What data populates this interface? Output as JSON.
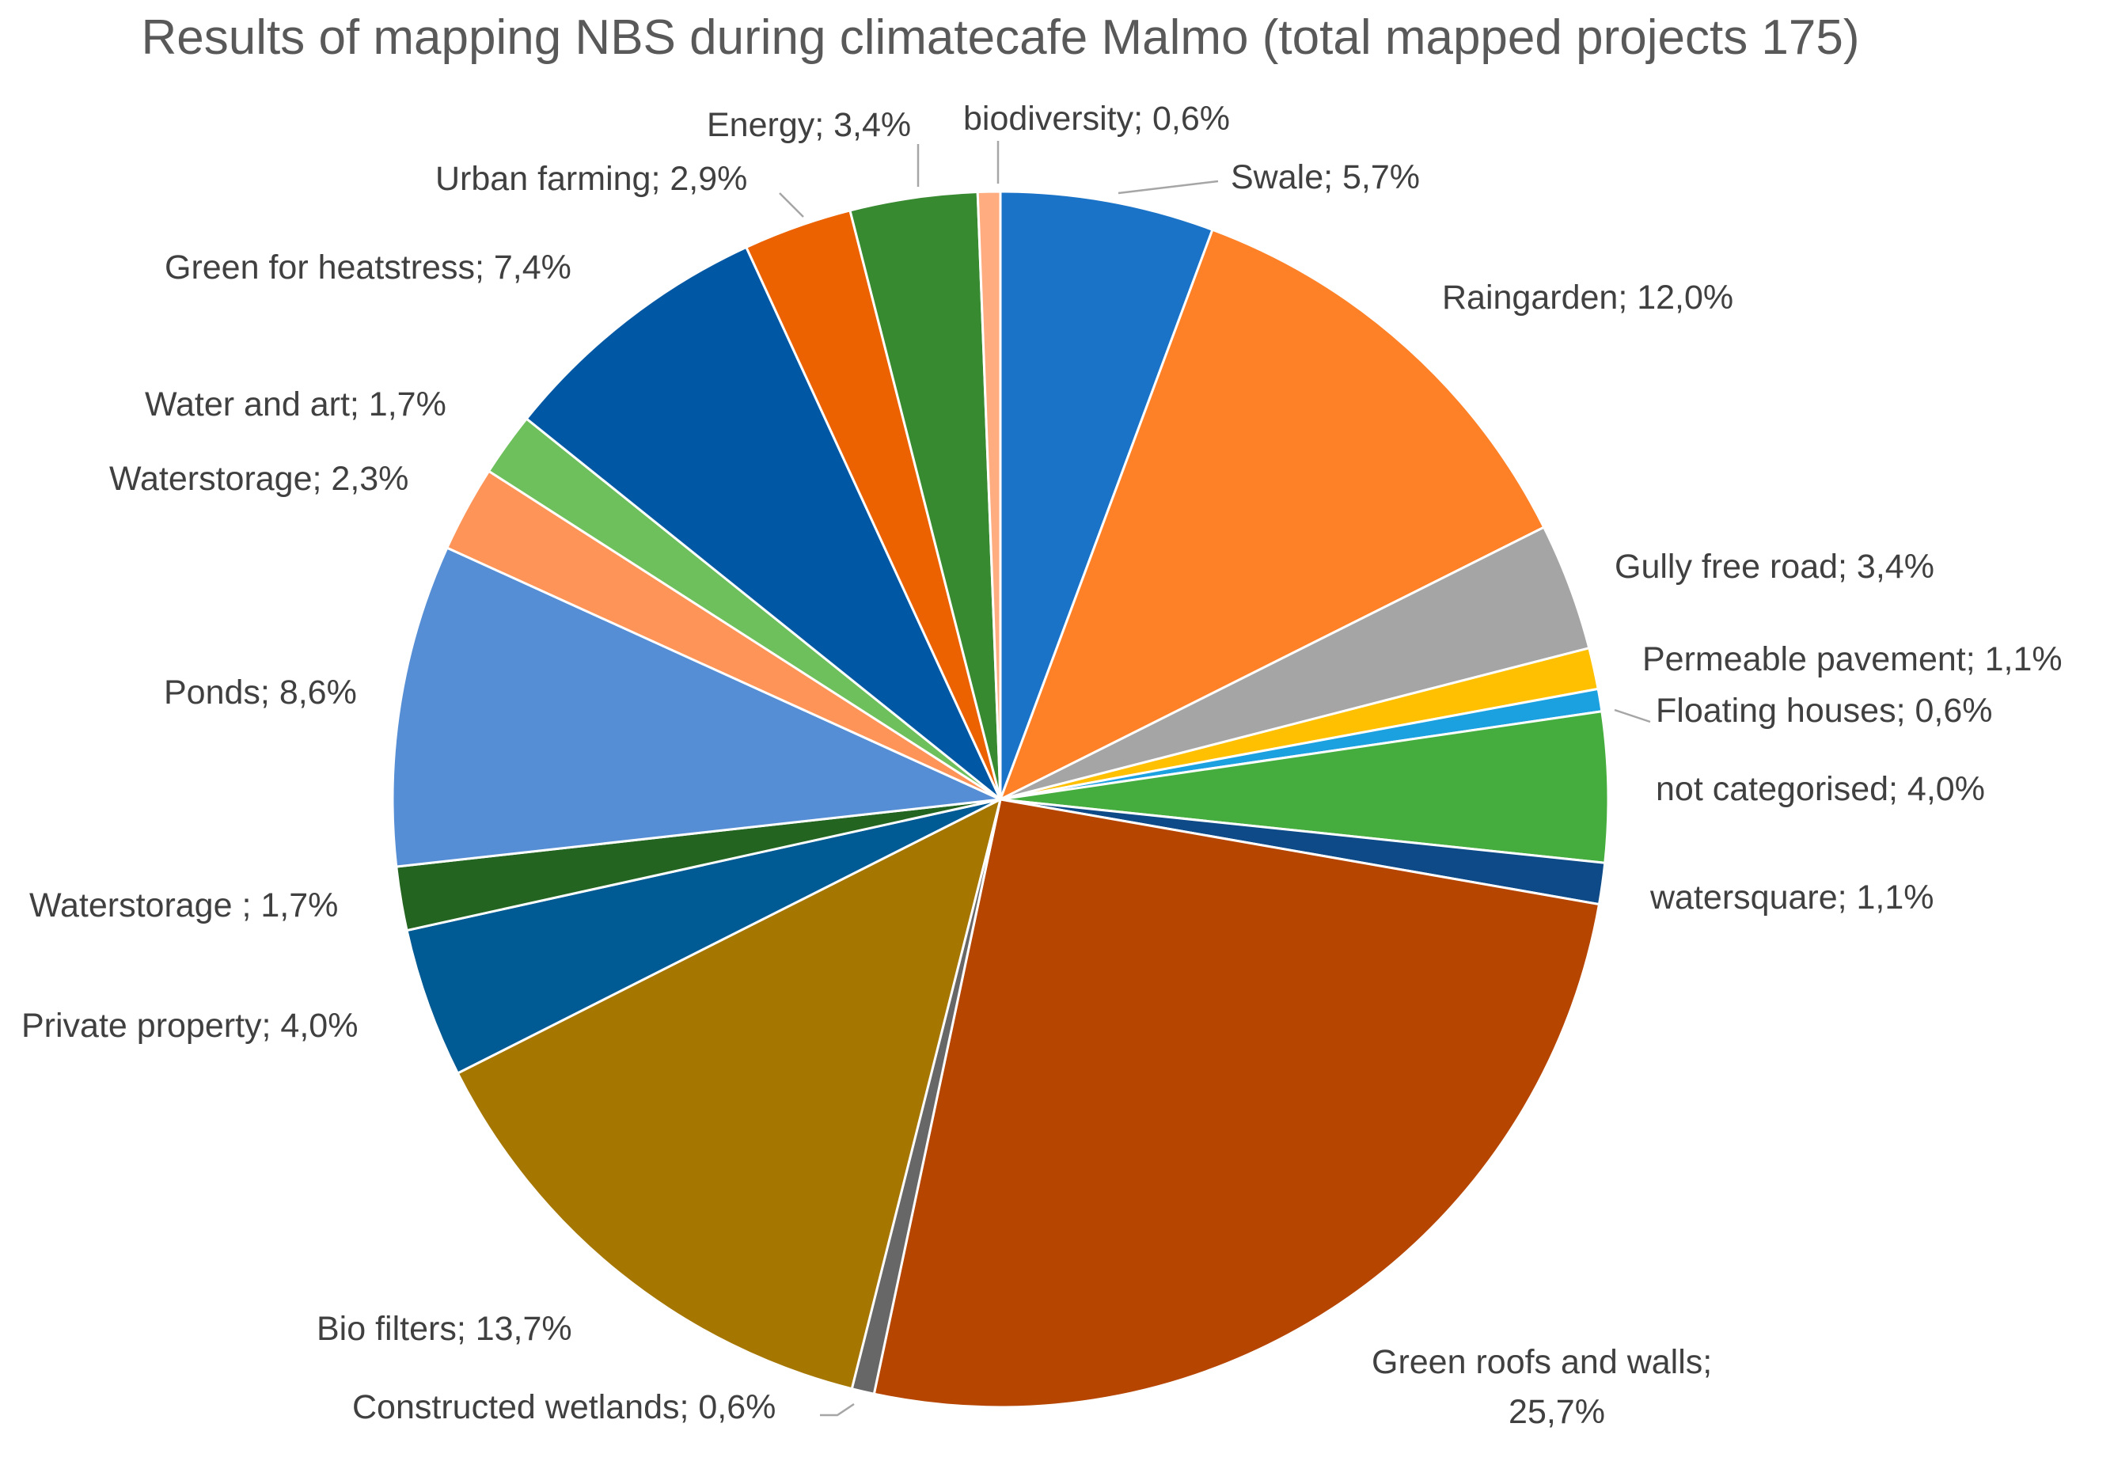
{
  "chart_data": {
    "type": "pie",
    "title": "Results of mapping NBS during climatecafe Malmo (total mapped projects 175)",
    "legend": "none",
    "slices": [
      {
        "label": "Swale; 5,7%",
        "value": 5.7,
        "color": "#1b73c8"
      },
      {
        "label": "Raingarden; 12,0%",
        "value": 12.0,
        "color": "#fe8128"
      },
      {
        "label": "Gully free road; 3,4%",
        "value": 3.4,
        "color": "#a5a5a5"
      },
      {
        "label": "Permeable pavement; 1,1%",
        "value": 1.1,
        "color": "#fec000"
      },
      {
        "label": "Floating houses; 0,6%",
        "value": 0.6,
        "color": "#1ba0e0"
      },
      {
        "label": "not categorised; 4,0%",
        "value": 4.0,
        "color": "#45ad3d"
      },
      {
        "label": "watersquare; 1,1%",
        "value": 1.1,
        "color": "#0d4a87"
      },
      {
        "label": "Green roofs and walls; 25,7%",
        "label_lines": [
          "Green roofs and walls;",
          "25,7%"
        ],
        "value": 25.7,
        "color": "#b64500"
      },
      {
        "label": "Constructed wetlands; 0,6%",
        "value": 0.6,
        "color": "#676767"
      },
      {
        "label": "Bio filters; 13,7%",
        "value": 13.7,
        "color": "#a57700"
      },
      {
        "label": "Private property; 4,0%",
        "value": 4.0,
        "color": "#005a94"
      },
      {
        "label": "Waterstorage ; 1,7%",
        "value": 1.7,
        "color": "#246421"
      },
      {
        "label": "Ponds; 8,6%",
        "value": 8.6,
        "color": "#558ed5"
      },
      {
        "label": "Waterstorage; 2,3%",
        "value": 2.3,
        "color": "#fe9458"
      },
      {
        "label": "Water and art; 1,7%",
        "value": 1.7,
        "color": "#6ec05c"
      },
      {
        "label": "Green for heatstress; 7,4%",
        "value": 7.4,
        "color": "#0058a5"
      },
      {
        "label": "Urban farming; 2,9%",
        "value": 2.9,
        "color": "#ec6200"
      },
      {
        "label": "Energy; 3,4%",
        "value": 3.4,
        "color": "#388a31"
      },
      {
        "label": "biodiversity; 0,6%",
        "value": 0.6,
        "color": "#ffad80"
      }
    ]
  }
}
